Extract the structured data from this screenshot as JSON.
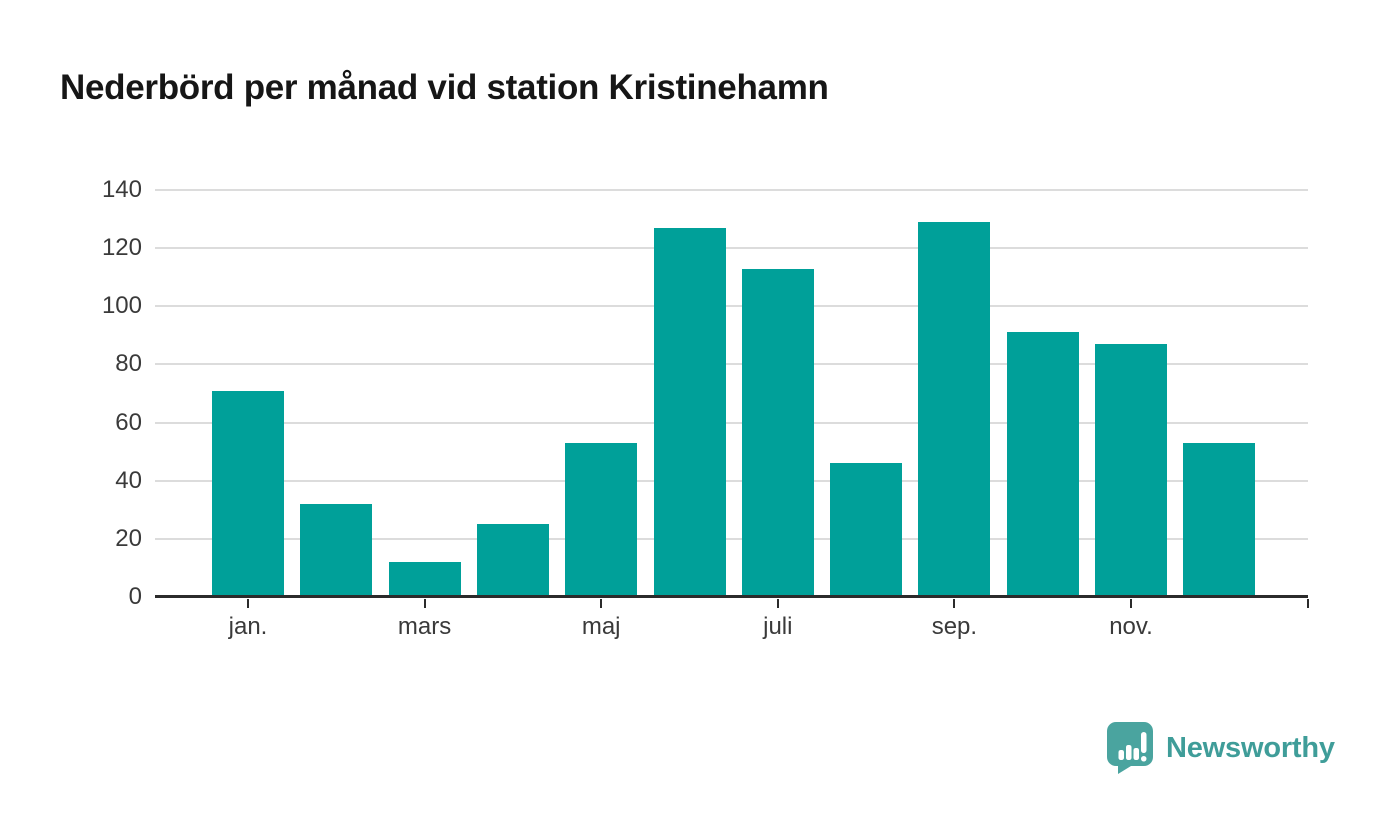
{
  "title": "Nederbörd per månad vid station Kristinehamn",
  "chart_data": {
    "type": "bar",
    "title": "Nederbörd per månad vid station Kristinehamn",
    "n_bars": 12,
    "values": [
      71,
      32,
      12,
      25,
      53,
      127,
      113,
      46,
      129,
      91,
      87,
      53
    ],
    "x_tick_labels": [
      "jan.",
      "mars",
      "maj",
      "juli",
      "sep.",
      "nov."
    ],
    "y_ticks": [
      0,
      20,
      40,
      60,
      80,
      100,
      120,
      140
    ],
    "ylim": [
      0,
      140
    ],
    "xlabel": "",
    "ylabel": "",
    "grid": true,
    "legend": false,
    "bar_color": "#00a099",
    "notes": "ticks on x-axis at every second bar (labeled) plus one unlabeled tick at the right end of the axis"
  },
  "colors": {
    "background": "#ffffff",
    "bar": "#00a099",
    "gridline": "#dcdcdc",
    "axis": "#2b2b2b",
    "tick_label": "#3a3a3a",
    "title": "#161616",
    "logo": "#3f9d99"
  },
  "logo": {
    "text": "Newsworthy",
    "icon": "newsworthy-speech-bubble-chart-icon"
  }
}
